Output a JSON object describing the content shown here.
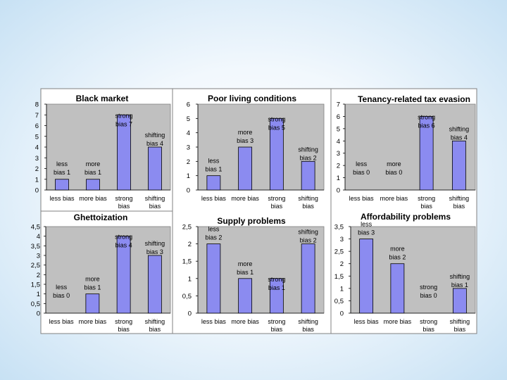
{
  "colors": {
    "bar": "#8b8bf0",
    "plot_background": "#c0c0c0"
  },
  "chart_data": [
    {
      "type": "bar",
      "title": "Black market",
      "categories": [
        "less bias",
        "more bias",
        "strong bias",
        "shifting bias"
      ],
      "values": [
        1,
        1,
        7,
        4
      ],
      "data_labels": [
        [
          "less",
          "bias  1"
        ],
        [
          "more",
          "bias  1"
        ],
        [
          "strong",
          "bias  7"
        ],
        [
          "shifting",
          "bias  4"
        ]
      ],
      "yticks": [
        "0",
        "1",
        "2",
        "3",
        "4",
        "5",
        "6",
        "7",
        "8"
      ],
      "ylim": [
        0,
        8
      ],
      "grid": false,
      "legend": "none"
    },
    {
      "type": "bar",
      "title": "Poor living conditions",
      "categories": [
        "less bias",
        "more bias",
        "strong bias",
        "shifting bias"
      ],
      "values": [
        1,
        3,
        5,
        2
      ],
      "data_labels": [
        [
          "less",
          "bias  1"
        ],
        [
          "more",
          "bias  3"
        ],
        [
          "strong",
          "bias  5"
        ],
        [
          "shifting",
          "bias  2"
        ]
      ],
      "yticks": [
        "0",
        "1",
        "2",
        "3",
        "4",
        "5",
        "6"
      ],
      "ylim": [
        0,
        6
      ],
      "grid": false,
      "legend": "none"
    },
    {
      "type": "bar",
      "title": "Tenancy-related tax evasion",
      "categories": [
        "less bias",
        "more bias",
        "strong bias",
        "shifting bias"
      ],
      "values": [
        0,
        0,
        6,
        4
      ],
      "data_labels": [
        [
          "less",
          "bias  0"
        ],
        [
          "more",
          "bias  0"
        ],
        [
          "strong",
          "bias  6"
        ],
        [
          "shifting",
          "bias  4"
        ]
      ],
      "yticks": [
        "0",
        "1",
        "2",
        "3",
        "4",
        "5",
        "6",
        "7"
      ],
      "ylim": [
        0,
        7
      ],
      "grid": false,
      "legend": "none"
    },
    {
      "type": "bar",
      "title": "Ghettoization",
      "categories": [
        "less bias",
        "more bias",
        "strong bias",
        "shifting bias"
      ],
      "values": [
        0,
        1,
        4,
        3
      ],
      "data_labels": [
        [
          "less",
          "bias  0"
        ],
        [
          "more",
          "bias  1"
        ],
        [
          "strong",
          "bias  4"
        ],
        [
          "shifting",
          "bias  3"
        ]
      ],
      "yticks": [
        "0",
        "0,5",
        "1",
        "1,5",
        "2",
        "2,5",
        "3",
        "3,5",
        "4",
        "4,5"
      ],
      "ylim": [
        0,
        4.5
      ],
      "grid": false,
      "legend": "none"
    },
    {
      "type": "bar",
      "title": "Supply problems",
      "categories": [
        "less bias",
        "more bias",
        "strong bias",
        "shifting bias"
      ],
      "values": [
        2,
        1,
        1,
        2
      ],
      "data_labels": [
        [
          "less",
          "bias  2"
        ],
        [
          "more",
          "bias  1"
        ],
        [
          "strong",
          "bias  1"
        ],
        [
          "shifting",
          "bias  2"
        ]
      ],
      "yticks": [
        "0",
        "0,5",
        "1",
        "1,5",
        "2",
        "2,5"
      ],
      "ylim": [
        0,
        2.5
      ],
      "grid": false,
      "legend": "none"
    },
    {
      "type": "bar",
      "title": "Affordability problems",
      "categories": [
        "less bias",
        "more bias",
        "strong bias",
        "shifting bias"
      ],
      "values": [
        3,
        2,
        0,
        1
      ],
      "data_labels": [
        [
          "less",
          "bias  3"
        ],
        [
          "more",
          "bias  2"
        ],
        [
          "strong",
          "bias  0"
        ],
        [
          "shifting",
          "bias  1"
        ]
      ],
      "yticks": [
        "0",
        "0,5",
        "1",
        "1,5",
        "2",
        "2,5",
        "3",
        "3,5"
      ],
      "ylim": [
        0,
        3.5
      ],
      "grid": false,
      "legend": "none"
    }
  ]
}
